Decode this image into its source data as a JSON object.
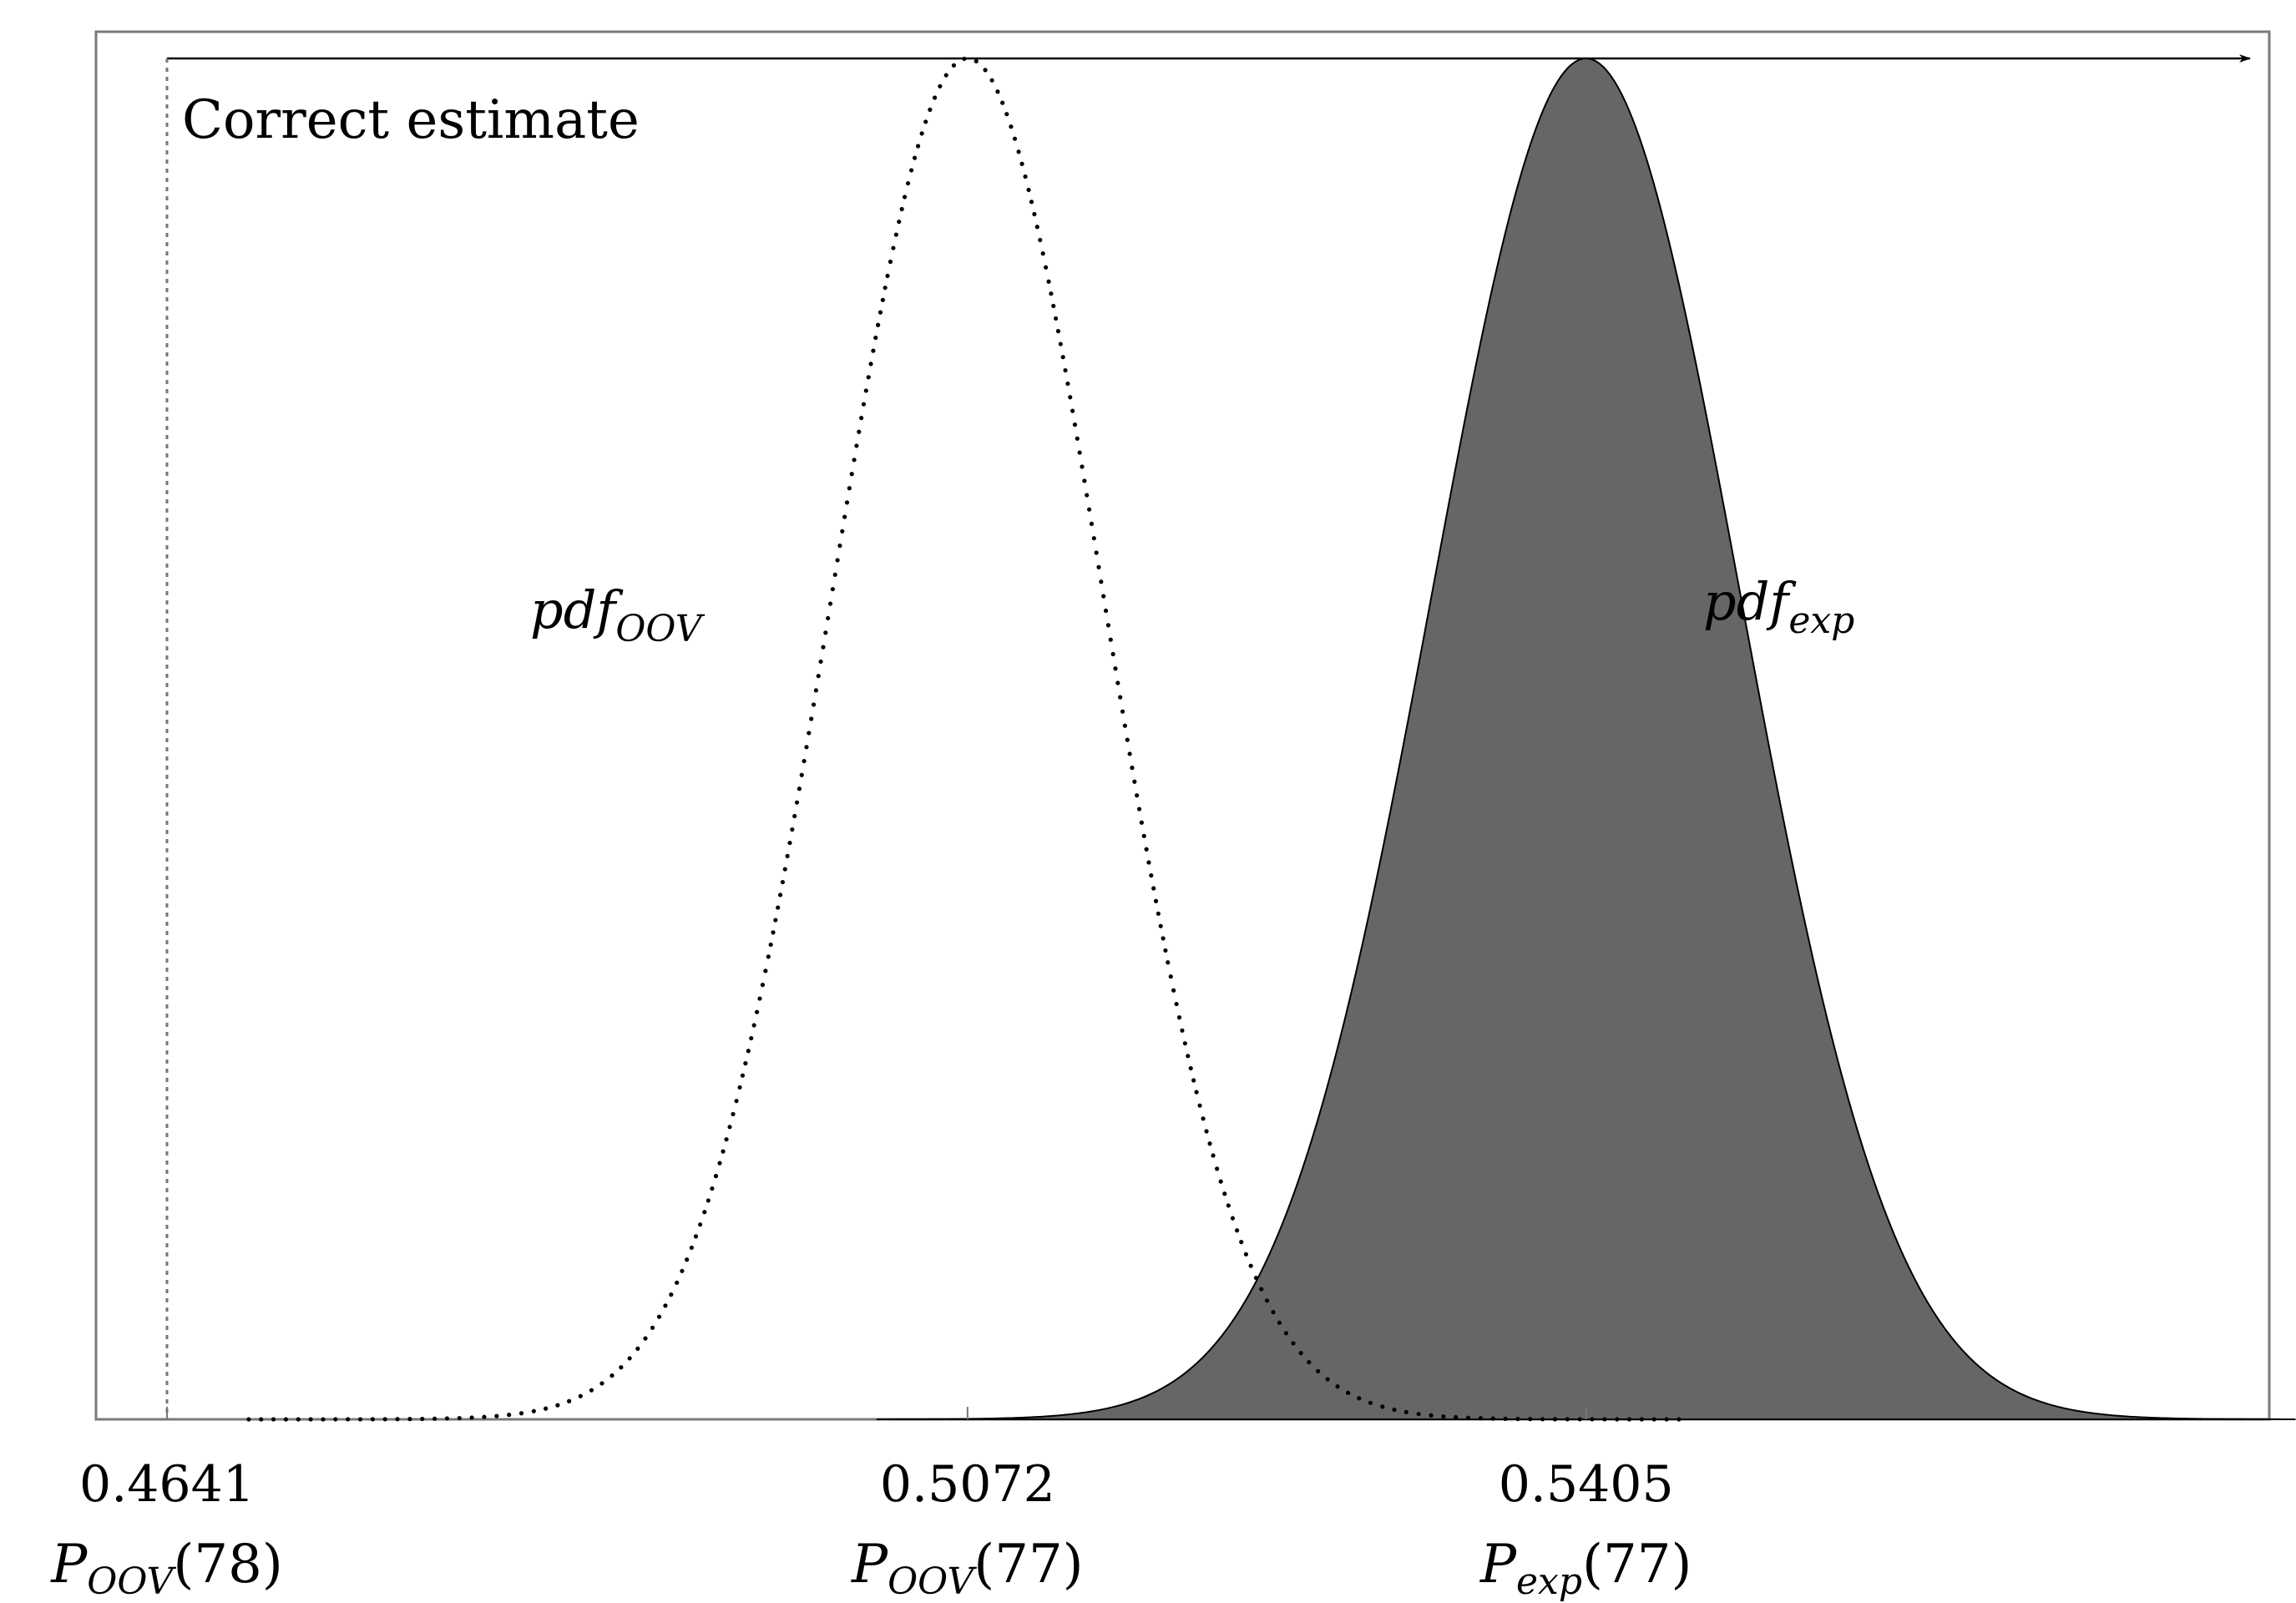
{
  "chart_data": {
    "type": "area",
    "title": "",
    "xlabel": "",
    "ylabel": "",
    "annotation": "Correct estimate",
    "grid": false,
    "xlim": [
      0.4641,
      0.5749
    ],
    "ylim": [
      0,
      1
    ],
    "reference_line": {
      "x": 0.4641,
      "label": "Correct estimate",
      "style": "dotted"
    },
    "ticks": [
      {
        "value": 0.4641,
        "value_label": "0.4641",
        "symbol": "P",
        "subscript": "OOV",
        "arg": "(78)"
      },
      {
        "value": 0.5072,
        "value_label": "0.5072",
        "symbol": "P",
        "subscript": "OOV",
        "arg": "(77)"
      },
      {
        "value": 0.5405,
        "value_label": "0.5405",
        "symbol": "P",
        "subscript": "exp",
        "arg": "(77)"
      }
    ],
    "series": [
      {
        "name": "pdf_OOV",
        "label_main": "pdf",
        "label_sub": "OOV",
        "style": "dotted",
        "mean": 0.5072,
        "sd": 0.0073,
        "x_range": [
          0.4685,
          0.5455
        ],
        "peak": 1.0
      },
      {
        "name": "pdf_exp",
        "label_main": "pdf",
        "label_sub": "exp",
        "style": "filled",
        "fill": "#666666",
        "mean": 0.5405,
        "sd": 0.0083,
        "x_range": [
          0.5023,
          0.5787
        ],
        "peak": 1.0
      }
    ]
  }
}
